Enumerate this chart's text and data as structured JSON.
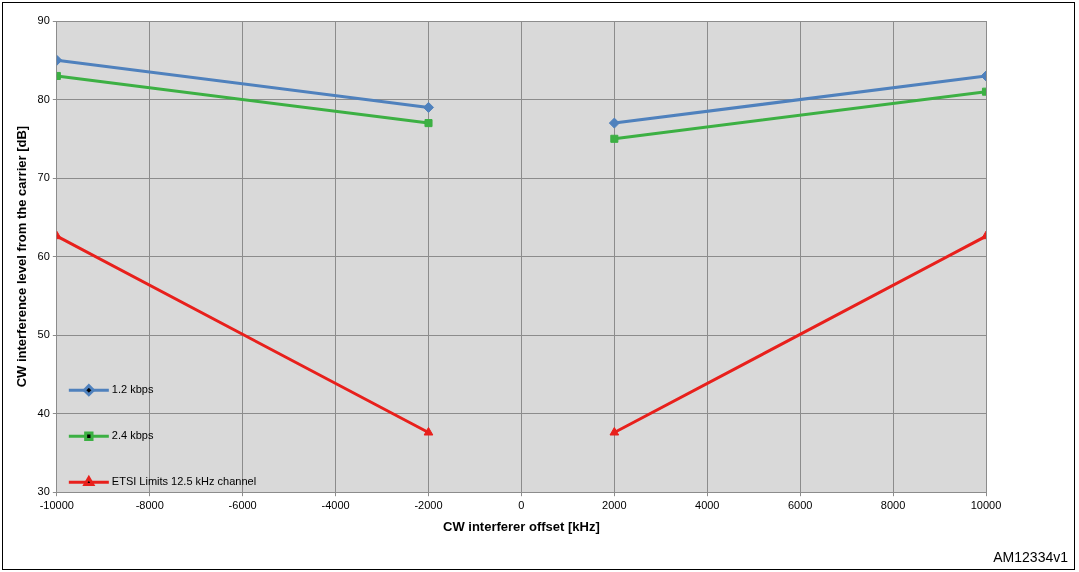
{
  "chart_data": {
    "type": "line",
    "xlabel": "CW interferer offset [kHz]",
    "ylabel": "CW interference level from the carrier [dB]",
    "x": [
      -10000,
      -2000,
      0,
      2000,
      10000
    ],
    "series": [
      {
        "name": "1.2 kbps",
        "color": "#4f81bd",
        "marker": "diamond",
        "values": [
          85,
          79,
          null,
          77,
          83
        ]
      },
      {
        "name": "2.4 kbps",
        "color": "#3cb043",
        "marker": "square",
        "values": [
          83,
          77,
          null,
          75,
          81
        ]
      },
      {
        "name": "ETSI Limits 12.5 kHz channel",
        "color": "#e8201c",
        "marker": "triangle",
        "values": [
          62.6,
          37.6,
          null,
          37.6,
          62.6
        ]
      }
    ],
    "xlim": [
      -10000,
      10000
    ],
    "xticks": [
      -10000,
      -8000,
      -6000,
      -4000,
      -2000,
      0,
      2000,
      4000,
      6000,
      8000,
      10000
    ],
    "ylim": [
      30,
      90
    ],
    "yticks": [
      30,
      40,
      50,
      60,
      70,
      80,
      90
    ],
    "grid": true,
    "legend": "bottom left",
    "line_style": "solid",
    "annotations": [
      "AM12334v1"
    ]
  }
}
